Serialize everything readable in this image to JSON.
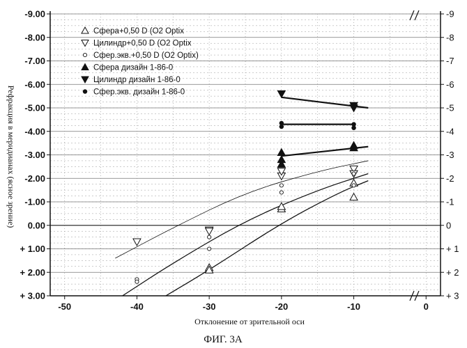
{
  "chart_data": {
    "type": "scatter",
    "caption": "ФИГ. 3А",
    "xlabel": "Отклонение от зрительной оси",
    "ylabel": "Рефракция в меридианах (ясное зрение)",
    "xlim": [
      -52,
      2
    ],
    "ylim": [
      -9,
      3
    ],
    "y_inverted": true,
    "grid": true,
    "legend_placement": "top-left",
    "x_ticks": [
      "-50",
      "-40",
      "-30",
      "-20",
      "-10",
      "0"
    ],
    "y_ticks_left": [
      "-9.00",
      "-8.00",
      "-7.00",
      "-6.00",
      "-5.00",
      "-4.00",
      "-3.00",
      "-2.00",
      "-1.00",
      "0.00",
      "+ 1.00",
      "+ 2.00",
      "+ 3.00"
    ],
    "y_ticks_right": [
      "-9",
      "-8",
      "-7",
      "-6",
      "-5",
      "-4",
      "-3",
      "-2",
      "-1",
      "0",
      "+ 1",
      "+ 2",
      "+ 3"
    ],
    "series": [
      {
        "name": "Сфера+0,50 D (O2 Optix",
        "marker": "triangle-up-open",
        "points": [
          [
            -30,
            1.8
          ],
          [
            -30,
            1.9
          ],
          [
            -20,
            -0.7
          ],
          [
            -20,
            -0.8
          ],
          [
            -10,
            -1.8
          ],
          [
            -10,
            -1.2
          ]
        ]
      },
      {
        "name": "Цилиндр+0,50 D (O2 Optix",
        "marker": "triangle-down-open",
        "points": [
          [
            -40,
            0.7
          ],
          [
            -30,
            0.2
          ],
          [
            -30,
            0.25
          ],
          [
            -20,
            -2.1
          ],
          [
            -20,
            -2.3
          ],
          [
            -10,
            -2.4
          ],
          [
            -10,
            -2.2
          ]
        ]
      },
      {
        "name": "Сфер.экв.+0,50 D (O2 Optix)",
        "marker": "circle-open",
        "points": [
          [
            -40,
            2.3
          ],
          [
            -40,
            2.4
          ],
          [
            -30,
            1.0
          ],
          [
            -30,
            0.5
          ],
          [
            -20,
            -1.7
          ],
          [
            -20,
            -1.4
          ],
          [
            -10,
            -2.2
          ],
          [
            -10,
            -1.7
          ]
        ]
      },
      {
        "name": "Сфера дизайн 1-86-0",
        "marker": "triangle-up-filled",
        "points": [
          [
            -20,
            -3.1
          ],
          [
            -20,
            -2.8
          ],
          [
            -20,
            -2.6
          ],
          [
            -10,
            -3.4
          ],
          [
            -10,
            -3.3
          ]
        ]
      },
      {
        "name": "Цилиндр дизайн 1-86-0",
        "marker": "triangle-down-filled",
        "points": [
          [
            -20,
            -5.6
          ],
          [
            -10,
            -5.1
          ],
          [
            -10,
            -5.0
          ]
        ]
      },
      {
        "name": "Сфер.экв. дизайн 1-86-0",
        "marker": "circle-filled",
        "points": [
          [
            -20,
            -4.35
          ],
          [
            -20,
            -4.2
          ],
          [
            -10,
            -4.3
          ],
          [
            -10,
            -4.15
          ]
        ]
      }
    ],
    "trend_lines": [
      {
        "style": "thin",
        "points": [
          [
            -43,
            1.4
          ],
          [
            -35,
            0.1
          ],
          [
            -25,
            -1.4
          ],
          [
            -15,
            -2.3
          ],
          [
            -8,
            -2.75
          ]
        ]
      },
      {
        "style": "medium",
        "points": [
          [
            -42,
            3.0
          ],
          [
            -35,
            1.6
          ],
          [
            -25,
            -0.2
          ],
          [
            -15,
            -1.5
          ],
          [
            -8,
            -2.2
          ]
        ]
      },
      {
        "style": "medium",
        "points": [
          [
            -36,
            3.0
          ],
          [
            -30,
            1.9
          ],
          [
            -20,
            -0.1
          ],
          [
            -12,
            -1.4
          ],
          [
            -8,
            -1.9
          ]
        ]
      },
      {
        "style": "thick",
        "points": [
          [
            -20,
            -4.3
          ],
          [
            -10,
            -4.3
          ]
        ]
      },
      {
        "style": "thick",
        "points": [
          [
            -20,
            -5.45
          ],
          [
            -8,
            -5.0
          ]
        ]
      },
      {
        "style": "thick",
        "points": [
          [
            -20,
            -2.95
          ],
          [
            -8,
            -3.35
          ]
        ]
      }
    ]
  }
}
